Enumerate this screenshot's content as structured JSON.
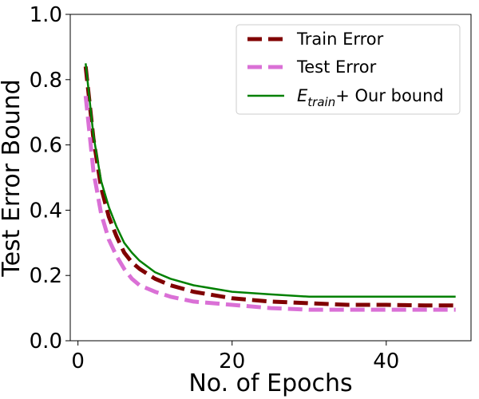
{
  "chart_data": {
    "type": "line",
    "xlabel": "No. of Epochs",
    "ylabel": "Test Error Bound",
    "xlim": [
      -1,
      51
    ],
    "ylim": [
      0.0,
      1.0
    ],
    "xticks": [
      0,
      20,
      40
    ],
    "yticks": [
      0.0,
      0.2,
      0.4,
      0.6,
      0.8,
      1.0
    ],
    "xtick_labels": [
      "0",
      "20",
      "40"
    ],
    "ytick_labels": [
      "0.0",
      "0.2",
      "0.4",
      "0.6",
      "0.8",
      "1.0"
    ],
    "grid": false,
    "legend_position": "top-right",
    "x": [
      1,
      2,
      3,
      4,
      5,
      6,
      7,
      8,
      10,
      12,
      15,
      20,
      25,
      30,
      35,
      40,
      45,
      49
    ],
    "series": [
      {
        "name": "Train Error",
        "color": "#800000",
        "style": "dashed",
        "values": [
          0.84,
          0.62,
          0.47,
          0.38,
          0.32,
          0.27,
          0.24,
          0.22,
          0.19,
          0.17,
          0.15,
          0.13,
          0.12,
          0.115,
          0.11,
          0.11,
          0.108,
          0.108
        ]
      },
      {
        "name": "Test Error",
        "color": "#DA70D6",
        "style": "dashed",
        "values": [
          0.75,
          0.52,
          0.39,
          0.31,
          0.26,
          0.22,
          0.19,
          0.17,
          0.15,
          0.135,
          0.12,
          0.11,
          0.1,
          0.095,
          0.095,
          0.095,
          0.095,
          0.095
        ]
      },
      {
        "name_main": "E",
        "name_sub": "train",
        "name_rest": "+ Our bound",
        "color": "#008000",
        "style": "solid",
        "values": [
          0.85,
          0.63,
          0.49,
          0.41,
          0.35,
          0.3,
          0.27,
          0.245,
          0.21,
          0.19,
          0.17,
          0.15,
          0.142,
          0.135,
          0.135,
          0.135,
          0.135,
          0.135
        ]
      }
    ]
  }
}
